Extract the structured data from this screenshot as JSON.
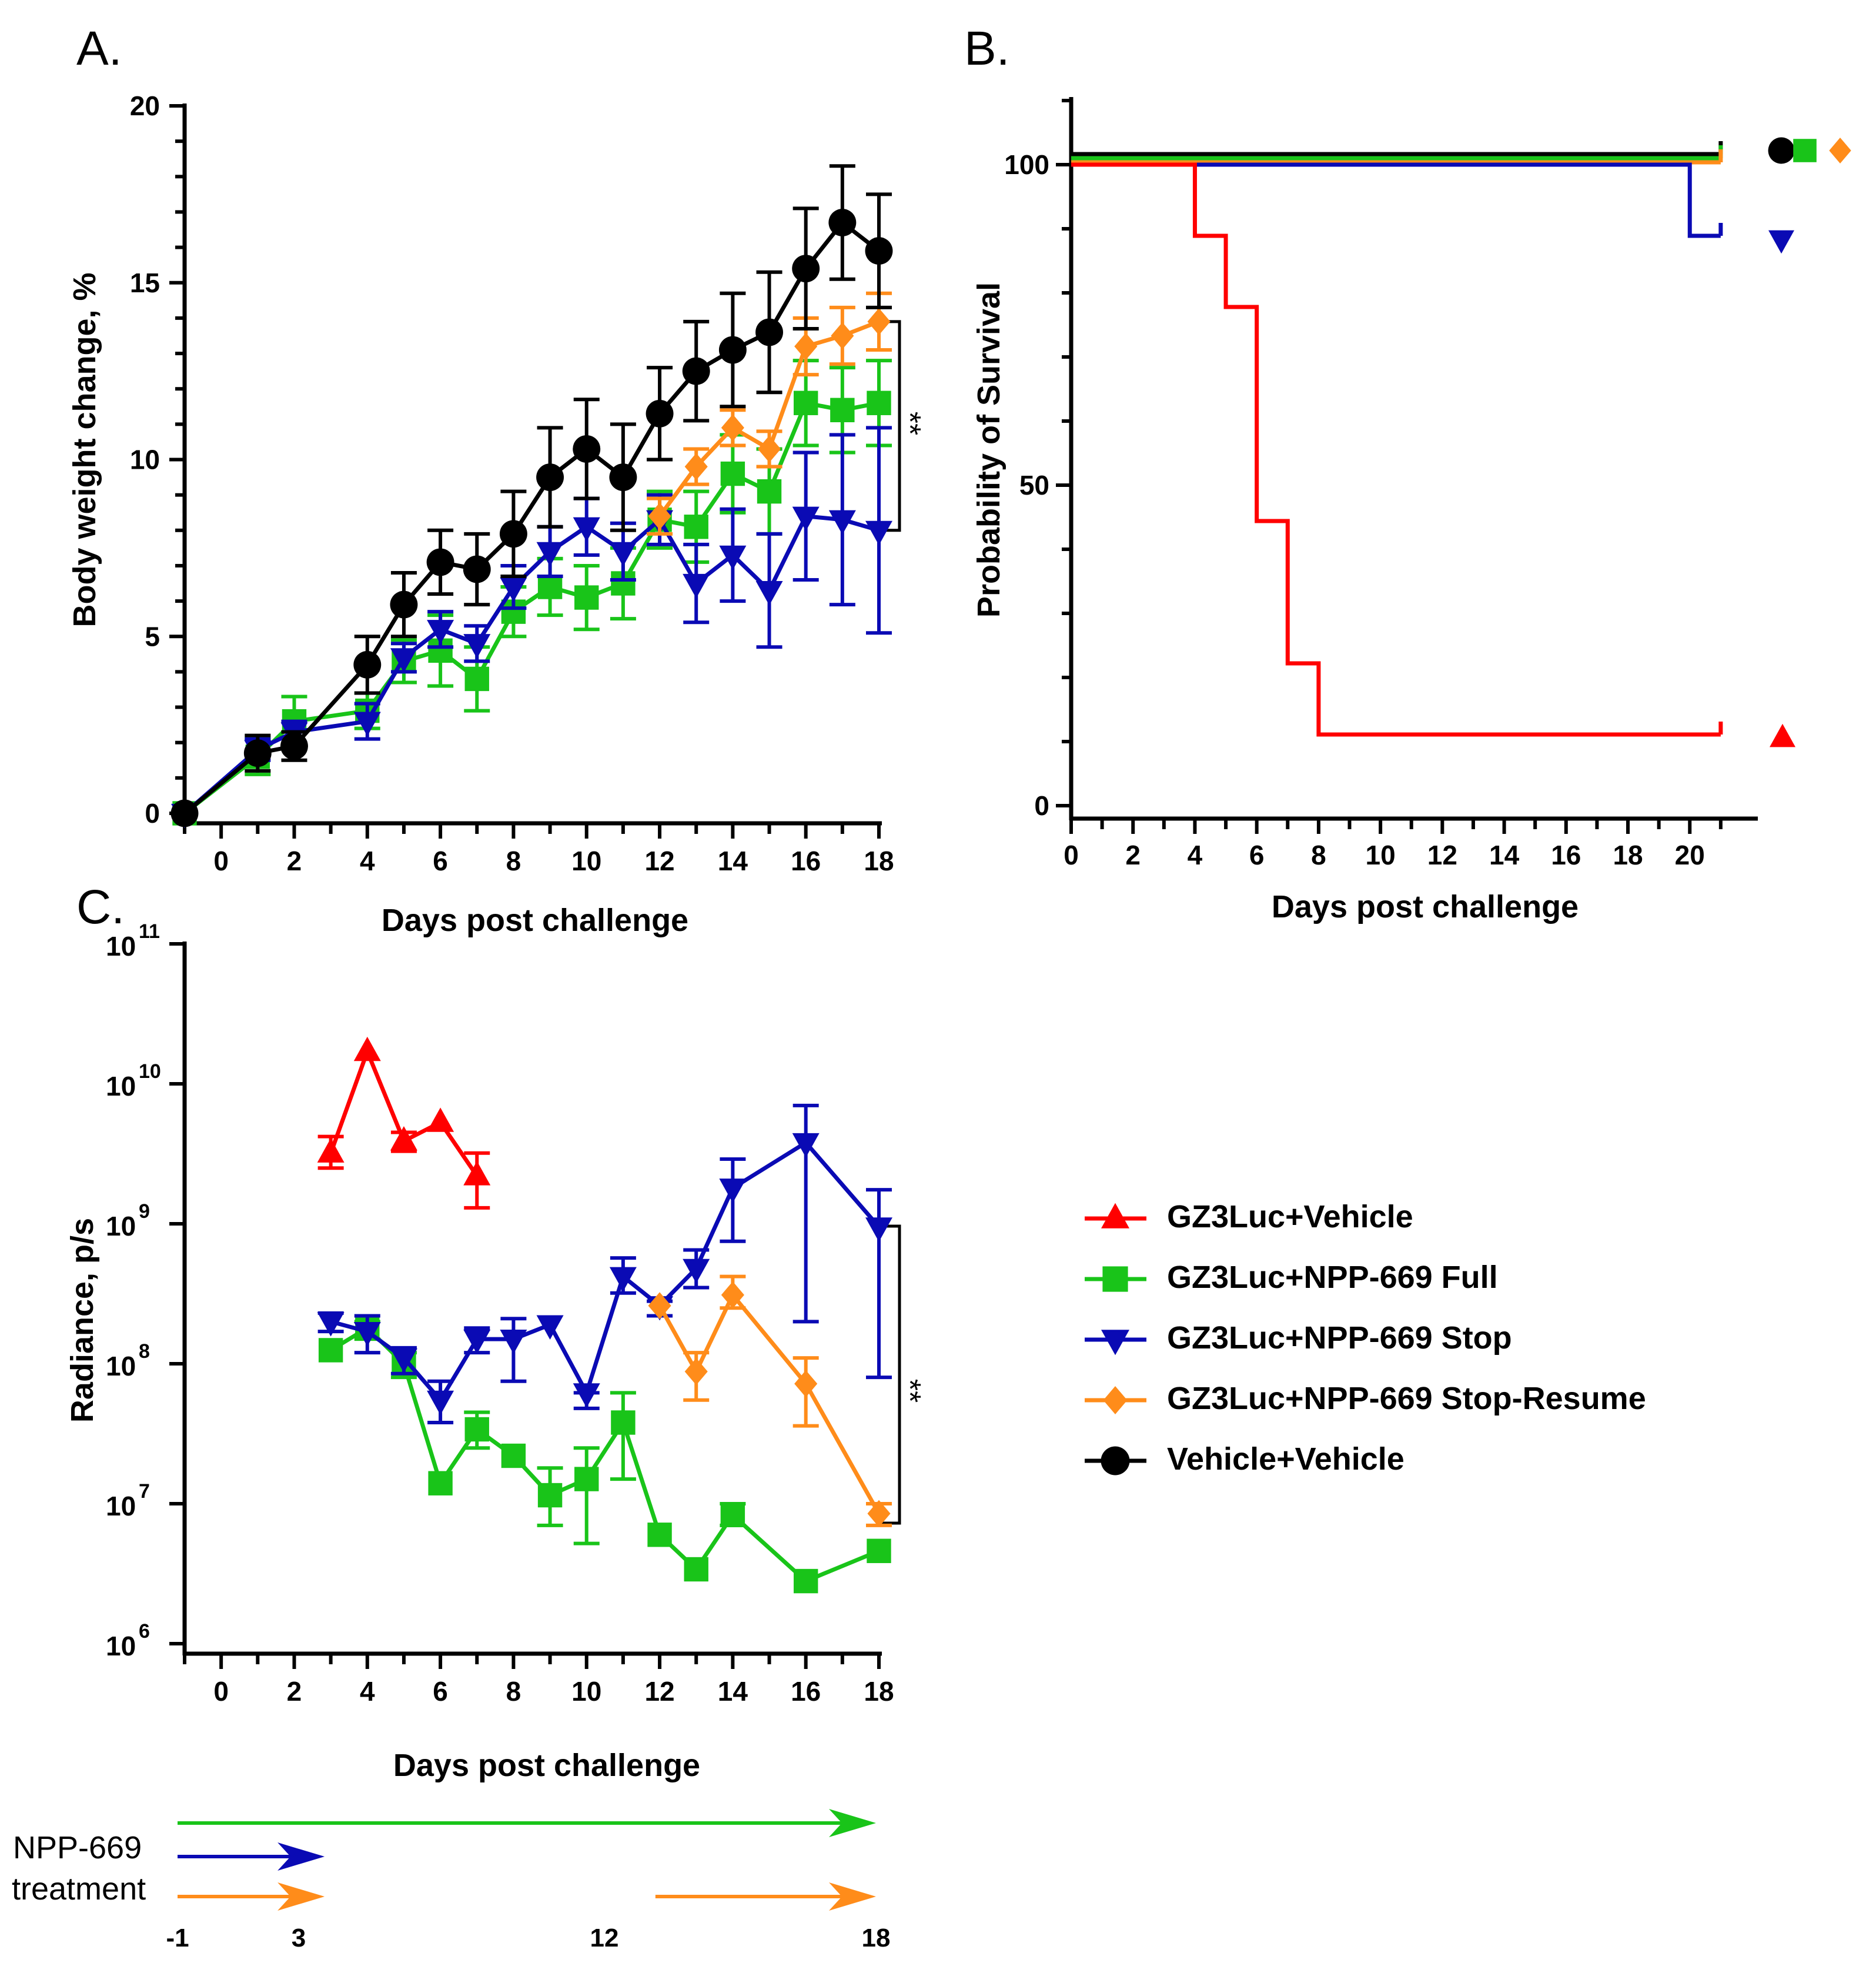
{
  "colors": {
    "red": "#ff0000",
    "green": "#19c419",
    "blue": "#0a0ab4",
    "orange": "#ff8c1a",
    "black": "#000000"
  },
  "legend": [
    {
      "label": "GZ3Luc+Vehicle",
      "color": "red",
      "marker": "triangle-up"
    },
    {
      "label": "GZ3Luc+NPP-669 Full",
      "color": "green",
      "marker": "square"
    },
    {
      "label": "GZ3Luc+NPP-669 Stop",
      "color": "blue",
      "marker": "triangle-down"
    },
    {
      "label": "GZ3Luc+NPP-669 Stop-Resume",
      "color": "orange",
      "marker": "diamond"
    },
    {
      "label": "Vehicle+Vehicle",
      "color": "black",
      "marker": "circle"
    }
  ],
  "chart_data": [
    {
      "panel": "A.",
      "type": "line",
      "xlabel": "Days post challenge",
      "ylabel": "Body weight change, %",
      "xlim": [
        -1,
        18
      ],
      "ylim": [
        0,
        20
      ],
      "xticks": [
        0,
        2,
        4,
        6,
        8,
        10,
        12,
        14,
        16,
        18
      ],
      "yticks": [
        0,
        5,
        10,
        15,
        20
      ],
      "significance": "**",
      "series": [
        {
          "name": "GZ3Luc+NPP-669 Full",
          "color": "green",
          "marker": "square",
          "x": [
            -1,
            1,
            2,
            4,
            5,
            6,
            7,
            8,
            9,
            10,
            11,
            12,
            13,
            14,
            15,
            16,
            17,
            18
          ],
          "y": [
            0,
            1.6,
            2.6,
            2.9,
            4.3,
            4.6,
            3.8,
            5.7,
            6.4,
            6.1,
            6.5,
            8.3,
            8.1,
            9.6,
            9.1,
            11.6,
            11.4,
            11.6
          ],
          "err": [
            0,
            0.5,
            0.7,
            0.5,
            0.6,
            1.0,
            0.9,
            0.7,
            0.8,
            0.9,
            1.0,
            0.8,
            1.0,
            1.1,
            1.2,
            1.2,
            1.2,
            1.2
          ]
        },
        {
          "name": "GZ3Luc+NPP-669 Stop",
          "color": "blue",
          "marker": "triangle-down",
          "x": [
            -1,
            1,
            2,
            4,
            5,
            6,
            7,
            8,
            9,
            10,
            11,
            12,
            13,
            14,
            15,
            16,
            17,
            18
          ],
          "y": [
            0,
            1.8,
            2.3,
            2.6,
            4.4,
            5.2,
            4.8,
            6.4,
            7.4,
            8.1,
            7.4,
            8.3,
            6.5,
            7.3,
            6.3,
            8.4,
            8.3,
            8.0
          ],
          "err": [
            0,
            0.3,
            0.3,
            0.5,
            0.4,
            0.5,
            0.5,
            0.6,
            0.7,
            0.8,
            0.8,
            0.7,
            1.1,
            1.3,
            1.6,
            1.8,
            2.4,
            2.9
          ]
        },
        {
          "name": "GZ3Luc+NPP-669 Stop-Resume",
          "color": "orange",
          "marker": "diamond",
          "x": [
            12,
            13,
            14,
            15,
            16,
            17,
            18
          ],
          "y": [
            8.4,
            9.8,
            10.9,
            10.3,
            13.2,
            13.5,
            13.9
          ],
          "err": [
            0.5,
            0.5,
            0.5,
            0.5,
            0.8,
            0.8,
            0.8
          ]
        },
        {
          "name": "Vehicle+Vehicle",
          "color": "black",
          "marker": "circle",
          "x": [
            -1,
            1,
            2,
            4,
            5,
            6,
            7,
            8,
            9,
            10,
            11,
            12,
            13,
            14,
            15,
            16,
            17,
            18
          ],
          "y": [
            0,
            1.7,
            1.9,
            4.2,
            5.9,
            7.1,
            6.9,
            7.9,
            9.5,
            10.3,
            9.5,
            11.3,
            12.5,
            13.1,
            13.6,
            15.4,
            16.7,
            15.9
          ],
          "err": [
            0,
            0.5,
            0.4,
            0.8,
            0.9,
            0.9,
            1.0,
            1.2,
            1.4,
            1.4,
            1.5,
            1.3,
            1.4,
            1.6,
            1.7,
            1.7,
            1.6,
            1.6
          ]
        }
      ]
    },
    {
      "panel": "B.",
      "type": "line",
      "subtype": "survival-step",
      "xlabel": "Days post challenge",
      "ylabel": "Probability of Survival",
      "xlim": [
        0,
        21
      ],
      "ylim": [
        0,
        100
      ],
      "xticks": [
        0,
        2,
        4,
        6,
        8,
        10,
        12,
        14,
        16,
        18,
        20
      ],
      "yticks": [
        0,
        50,
        100
      ],
      "series": [
        {
          "name": "Vehicle+Vehicle",
          "color": "black",
          "marker": "circle",
          "x": [
            0,
            21
          ],
          "y": [
            100,
            100
          ]
        },
        {
          "name": "GZ3Luc+NPP-669 Full",
          "color": "green",
          "marker": "square",
          "x": [
            0,
            21
          ],
          "y": [
            100,
            100
          ]
        },
        {
          "name": "GZ3Luc+NPP-669 Stop-Resume",
          "color": "orange",
          "marker": "diamond",
          "x": [
            0,
            21
          ],
          "y": [
            100,
            100
          ]
        },
        {
          "name": "GZ3Luc+NPP-669 Stop",
          "color": "blue",
          "marker": "triangle-down",
          "x": [
            0,
            20,
            21
          ],
          "y": [
            100,
            88.9,
            88.9
          ]
        },
        {
          "name": "GZ3Luc+Vehicle",
          "color": "red",
          "marker": "triangle-up",
          "x": [
            0,
            4,
            5,
            6,
            7,
            8,
            21
          ],
          "y": [
            100,
            88.9,
            77.8,
            44.4,
            22.2,
            11.1,
            11.1
          ]
        }
      ]
    },
    {
      "panel": "C.",
      "type": "line",
      "yscale": "log",
      "xlabel": "Days post challenge",
      "ylabel": "Radiance, p/s",
      "xlim": [
        -1,
        18
      ],
      "ylim": [
        1000000,
        100000000000
      ],
      "xticks": [
        0,
        2,
        4,
        6,
        8,
        10,
        12,
        14,
        16,
        18
      ],
      "yticks": [
        6,
        7,
        8,
        9,
        10,
        11
      ],
      "ytick_base": "10",
      "significance": "**",
      "series": [
        {
          "name": "GZ3Luc+Vehicle",
          "color": "red",
          "marker": "triangle-up",
          "x": [
            3,
            4,
            5,
            6,
            7
          ],
          "y": [
            3200000000,
            17000000000,
            3900000000,
            5300000000,
            2200000000
          ],
          "err_low": [
            2500000000,
            17000000000,
            3300000000,
            5300000000,
            1300000000
          ],
          "err_high": [
            4200000000,
            17000000000,
            4500000000,
            5300000000,
            3200000000
          ]
        },
        {
          "name": "GZ3Luc+NPP-669 Full",
          "color": "green",
          "marker": "square",
          "x": [
            3,
            4,
            5,
            6,
            7,
            8,
            9,
            10,
            11,
            12,
            13,
            14,
            16,
            18
          ],
          "y": [
            125000000,
            180000000,
            100000000,
            14000000,
            34000000,
            22000000,
            11500000,
            15000000,
            38000000,
            6000000,
            3400000,
            8300000,
            2800000,
            4600000
          ],
          "err_low": [
            125000000,
            150000000,
            80000000,
            14000000,
            25000000,
            22000000,
            7000000,
            5200000,
            15000000,
            6000000,
            3400000,
            7000000,
            2800000,
            4600000
          ],
          "err_high": [
            125000000,
            200000000,
            120000000,
            14000000,
            45000000,
            22000000,
            18000000,
            25000000,
            62000000,
            6000000,
            3400000,
            10000000,
            2800000,
            4600000
          ]
        },
        {
          "name": "GZ3Luc+NPP-669 Stop",
          "color": "blue",
          "marker": "triangle-down",
          "x": [
            3,
            4,
            5,
            6,
            7,
            8,
            9,
            10,
            11,
            12,
            13,
            14,
            16,
            18
          ],
          "y": [
            200000000,
            170000000,
            110000000,
            55000000,
            150000000,
            150000000,
            190000000,
            62000000,
            420000000,
            260000000,
            480000000,
            1800000000,
            3800000000,
            950000000
          ],
          "err_low": [
            170000000,
            120000000,
            85000000,
            38000000,
            120000000,
            75000000,
            190000000,
            48000000,
            320000000,
            220000000,
            350000000,
            750000000,
            200000000,
            80000000
          ],
          "err_high": [
            230000000,
            220000000,
            130000000,
            75000000,
            180000000,
            210000000,
            190000000,
            62000000,
            570000000,
            280000000,
            650000000,
            2900000000,
            7000000000,
            1750000000
          ]
        },
        {
          "name": "GZ3Luc+NPP-669 Stop-Resume",
          "color": "orange",
          "marker": "diamond",
          "x": [
            12,
            13,
            14,
            16,
            18
          ],
          "y": [
            260000000,
            88000000,
            310000000,
            72000000,
            8500000
          ],
          "err_low": [
            260000000,
            55000000,
            250000000,
            36000000,
            7000000
          ],
          "err_high": [
            260000000,
            120000000,
            420000000,
            110000000,
            10000000
          ]
        }
      ]
    }
  ],
  "treatment": {
    "label_line1": "NPP-669",
    "label_line2": "treatment",
    "arrows": [
      {
        "color": "green",
        "start": -1,
        "end": 18
      },
      {
        "color": "blue",
        "start": -1,
        "end": 3
      },
      {
        "color": "orange",
        "start": -1,
        "end": 3
      },
      {
        "color": "orange",
        "start": 12,
        "end": 18
      }
    ],
    "tick_labels": [
      "-1",
      "3",
      "12",
      "18"
    ]
  }
}
